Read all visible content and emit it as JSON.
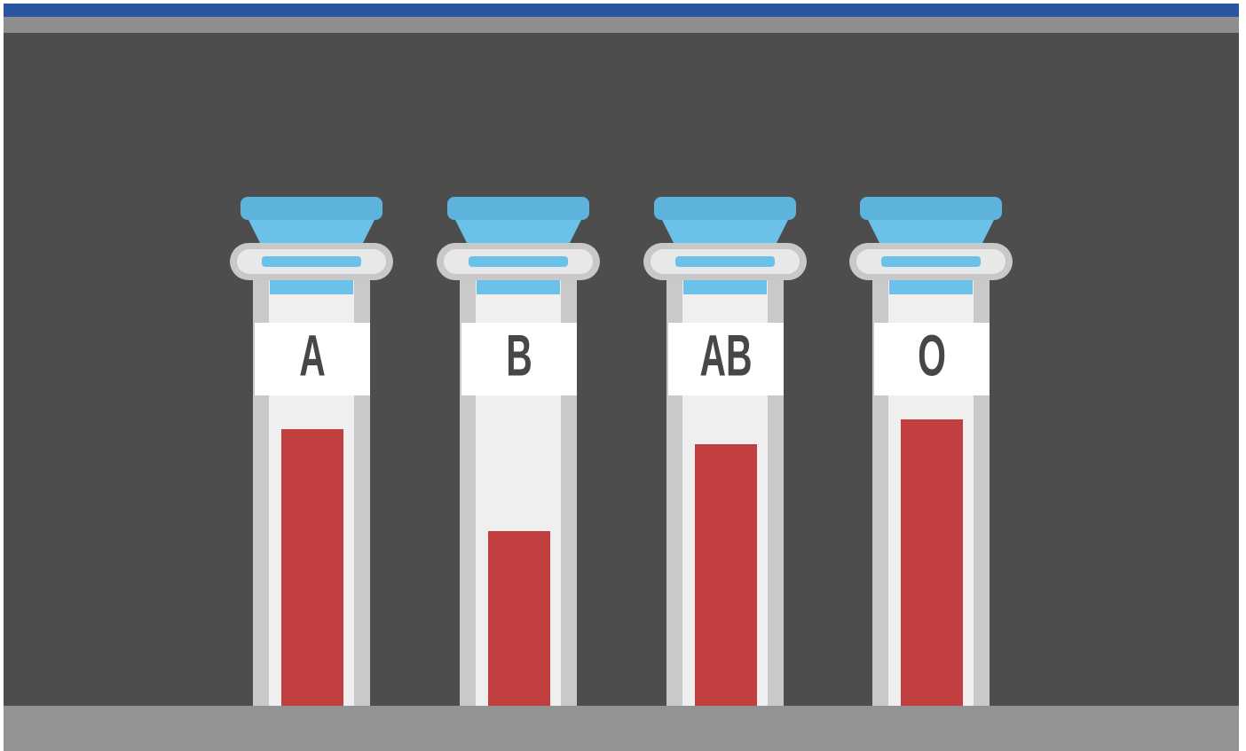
{
  "tubes": [
    {
      "label": "A"
    },
    {
      "label": "B"
    },
    {
      "label": "AB"
    },
    {
      "label": "O"
    }
  ]
}
